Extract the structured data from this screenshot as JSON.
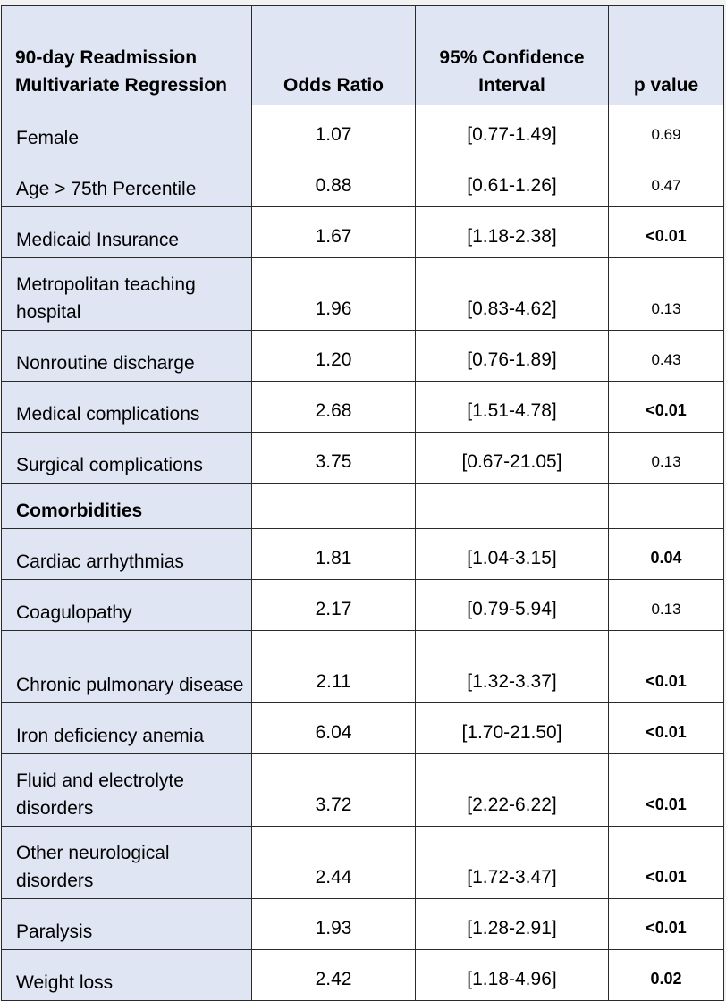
{
  "header": {
    "col1": "90-day Readmission Multivariate Regression",
    "col2": "Odds Ratio",
    "col3": "95% Confidence Interval",
    "col4": "p value"
  },
  "rows": [
    {
      "label": "Female",
      "or": "1.07",
      "ci": "[0.77-1.49]",
      "p": "0.69",
      "p_bold": false
    },
    {
      "label": "Age > 75th Percentile",
      "or": "0.88",
      "ci": "[0.61-1.26]",
      "p": "0.47",
      "p_bold": false
    },
    {
      "label": "Medicaid Insurance",
      "or": "1.67",
      "ci": "[1.18-2.38]",
      "p": "<0.01",
      "p_bold": true
    },
    {
      "label": "Metropolitan teaching hospital",
      "or": "1.96",
      "ci": "[0.83-4.62]",
      "p": "0.13",
      "p_bold": false
    },
    {
      "label": "Nonroutine discharge",
      "or": "1.20",
      "ci": "[0.76-1.89]",
      "p": "0.43",
      "p_bold": false
    },
    {
      "label": "Medical complications",
      "or": "2.68",
      "ci": "[1.51-4.78]",
      "p": "<0.01",
      "p_bold": true
    },
    {
      "label": "Surgical complications",
      "or": "3.75",
      "ci": "[0.67-21.05]",
      "p": "0.13",
      "p_bold": false
    }
  ],
  "section_label": "Comorbidities",
  "comorbidity_rows": [
    {
      "label": "Cardiac arrhythmias",
      "or": "1.81",
      "ci": "[1.04-3.15]",
      "p": "0.04",
      "p_bold": true
    },
    {
      "label": "Coagulopathy",
      "or": "2.17",
      "ci": "[0.79-5.94]",
      "p": "0.13",
      "p_bold": false
    },
    {
      "label": "Chronic pulmonary disease",
      "or": "2.11",
      "ci": "[1.32-3.37]",
      "p": "<0.01",
      "p_bold": true
    },
    {
      "label": "Iron deficiency anemia",
      "or": "6.04",
      "ci": "[1.70-21.50]",
      "p": "<0.01",
      "p_bold": true
    },
    {
      "label": "Fluid and electrolyte disorders",
      "or": "3.72",
      "ci": "[2.22-6.22]",
      "p": "<0.01",
      "p_bold": true
    },
    {
      "label": "Other neurological disorders",
      "or": "2.44",
      "ci": "[1.72-3.47]",
      "p": "<0.01",
      "p_bold": true
    },
    {
      "label": "Paralysis",
      "or": "1.93",
      "ci": "[1.28-2.91]",
      "p": "<0.01",
      "p_bold": true
    },
    {
      "label": "Weight loss",
      "or": "2.42",
      "ci": "[1.18-4.96]",
      "p": "0.02",
      "p_bold": true
    }
  ],
  "colors": {
    "label_bg": "#dfe5f3",
    "border": "#2a2a2a"
  }
}
